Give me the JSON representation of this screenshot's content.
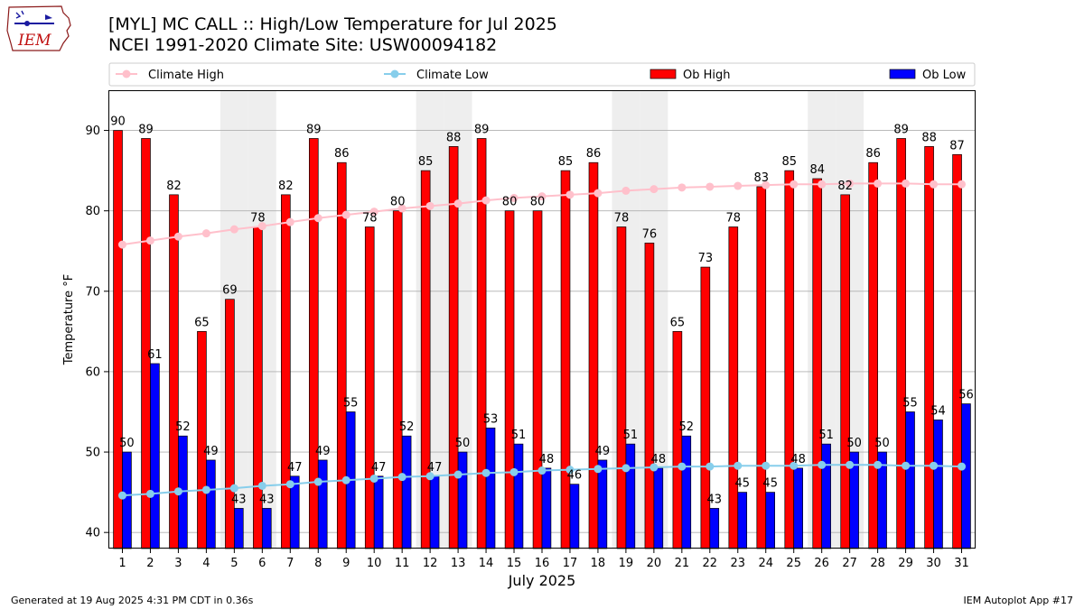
{
  "header": {
    "title_line1": "[MYL] MC CALL :: High/Low Temperature for Jul 2025",
    "title_line2": "NCEI 1991-2020 Climate Site: USW00094182",
    "logo_text": "IEM"
  },
  "footer": {
    "left": "Generated at 19 Aug 2025 4:31 PM CDT in 0.36s",
    "right": "IEM Autoplot App #17"
  },
  "colors": {
    "ob_high": "#ff0000",
    "ob_low": "#0000ff",
    "climate_high": "#ffc0cb",
    "climate_low": "#87ceeb",
    "weekend_shade": "#eeeeee",
    "grid": "#b0b0b0"
  },
  "chart_data": {
    "type": "bar",
    "xlabel": "July 2025",
    "ylabel": "Temperature °F",
    "ylim": [
      38,
      95
    ],
    "yticks": [
      40,
      50,
      60,
      70,
      80,
      90
    ],
    "grid": "horizontal",
    "legend_position": "top",
    "categories": [
      "1",
      "2",
      "3",
      "4",
      "5",
      "6",
      "7",
      "8",
      "9",
      "10",
      "11",
      "12",
      "13",
      "14",
      "15",
      "16",
      "17",
      "18",
      "19",
      "20",
      "21",
      "22",
      "23",
      "24",
      "25",
      "26",
      "27",
      "28",
      "29",
      "30",
      "31"
    ],
    "shaded_days": [
      5,
      6,
      12,
      13,
      19,
      20,
      26,
      27
    ],
    "series": [
      {
        "name": "Climate High",
        "type": "line",
        "values": [
          75.8,
          76.3,
          76.8,
          77.2,
          77.7,
          78.1,
          78.6,
          79.1,
          79.5,
          79.9,
          80.3,
          80.6,
          80.9,
          81.3,
          81.6,
          81.8,
          82.0,
          82.2,
          82.5,
          82.7,
          82.9,
          83.0,
          83.1,
          83.2,
          83.3,
          83.3,
          83.4,
          83.4,
          83.4,
          83.3,
          83.3
        ]
      },
      {
        "name": "Climate Low",
        "type": "line",
        "values": [
          44.6,
          44.8,
          45.1,
          45.3,
          45.5,
          45.8,
          46.0,
          46.3,
          46.5,
          46.7,
          46.9,
          47.0,
          47.2,
          47.4,
          47.5,
          47.7,
          47.8,
          47.9,
          48.0,
          48.1,
          48.2,
          48.2,
          48.3,
          48.3,
          48.3,
          48.4,
          48.4,
          48.4,
          48.3,
          48.3,
          48.2
        ]
      },
      {
        "name": "Ob High",
        "type": "bar",
        "values": [
          90,
          89,
          82,
          65,
          69,
          78,
          82,
          89,
          86,
          78,
          80,
          85,
          88,
          89,
          80,
          80,
          85,
          86,
          78,
          76,
          65,
          73,
          78,
          83,
          85,
          84,
          82,
          86,
          89,
          88,
          87
        ]
      },
      {
        "name": "Ob Low",
        "type": "bar",
        "values": [
          50,
          61,
          52,
          49,
          43,
          43,
          47,
          49,
          55,
          47,
          52,
          47,
          50,
          53,
          51,
          48,
          46,
          49,
          51,
          48,
          52,
          43,
          45,
          45,
          48,
          51,
          50,
          50,
          55,
          54,
          56
        ]
      }
    ]
  }
}
